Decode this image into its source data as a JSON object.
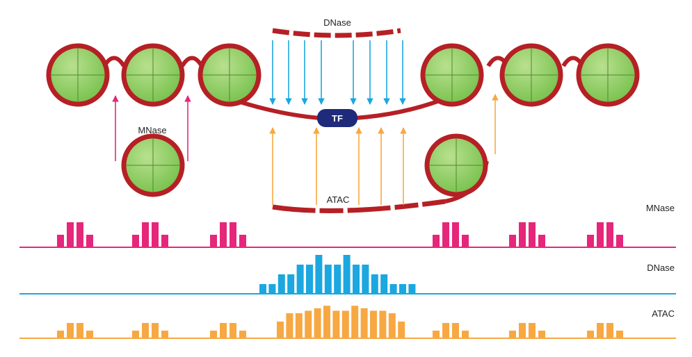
{
  "labels": {
    "dnase_top": "DNase",
    "mnase_mid": "MNase",
    "atac_bottom": "ATAC",
    "tf": "TF",
    "track_mnase": "MNase",
    "track_dnase": "DNase",
    "track_atac": "ATAC"
  },
  "colors": {
    "dna": "#b52025",
    "nucleosome_fill": "#74c04a",
    "nucleosome_light": "#b9e08f",
    "tf_fill": "#1f2a7a",
    "mnase": "#e6267a",
    "dnase": "#1ba7e0",
    "atac": "#f7a842"
  },
  "tracks": {
    "mnase": [
      [
        1,
        2,
        2,
        1
      ],
      [
        1,
        2,
        2,
        1
      ],
      [
        1,
        2,
        2,
        1
      ],
      [
        1,
        2,
        2,
        1
      ],
      [
        1,
        2,
        2,
        1
      ],
      [
        1,
        2,
        2,
        1
      ]
    ],
    "dnase": [
      1,
      1,
      2,
      2,
      3,
      3,
      4,
      3,
      3,
      4,
      3,
      3,
      2,
      2,
      1,
      1,
      1
    ],
    "atac": {
      "left": [
        [
          1,
          2,
          2,
          1
        ],
        [
          1,
          2,
          2,
          1
        ],
        [
          1,
          2,
          2,
          1
        ]
      ],
      "center": [
        2,
        3,
        3,
        3.3,
        3.6,
        3.9,
        3.3,
        3.3,
        3.9,
        3.6,
        3.3,
        3.3,
        3,
        2
      ],
      "right": [
        [
          1,
          2,
          2,
          1
        ],
        [
          1,
          2,
          2,
          1
        ],
        [
          1,
          2,
          2,
          1
        ]
      ]
    }
  }
}
